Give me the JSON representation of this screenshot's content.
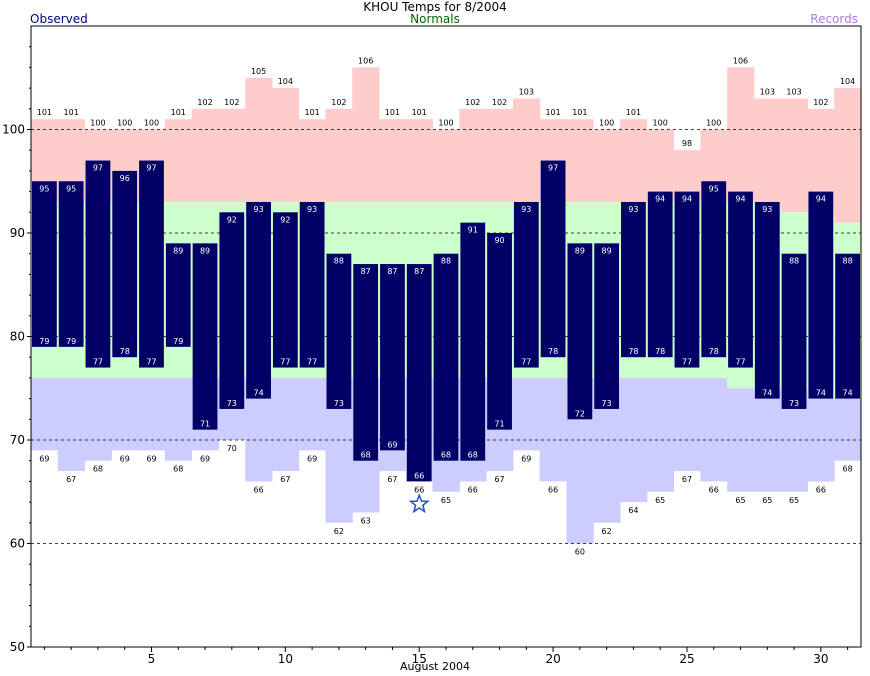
{
  "header": {
    "title": "KHOU Temps for 8/2004",
    "observed_label": "Observed",
    "normals_label": "Normals",
    "records_label": "Records"
  },
  "colors": {
    "observed": "#000066",
    "record_high": "#ffcccc",
    "normal": "#ccffcc",
    "record_low": "#ccccff",
    "title_observed": "#000080",
    "title_normals": "#006400",
    "title_records": "#b07ad8",
    "star": "#1e50c8"
  },
  "chart_data": {
    "type": "bar",
    "title": "KHOU Temps for 8/2004",
    "xlabel": "August 2004",
    "ylabel": "",
    "ylim": [
      50,
      110
    ],
    "yticks": [
      50,
      60,
      70,
      80,
      90,
      100
    ],
    "xticks": [
      5,
      10,
      15,
      20,
      25,
      30
    ],
    "grid": true,
    "legend": "top",
    "days": [
      1,
      2,
      3,
      4,
      5,
      6,
      7,
      8,
      9,
      10,
      11,
      12,
      13,
      14,
      15,
      16,
      17,
      18,
      19,
      20,
      21,
      22,
      23,
      24,
      25,
      26,
      27,
      28,
      29,
      30,
      31
    ],
    "series": [
      {
        "name": "Observed",
        "key": "obs_high",
        "values": [
          95,
          95,
          97,
          96,
          97,
          89,
          89,
          92,
          93,
          92,
          93,
          88,
          87,
          87,
          87,
          88,
          91,
          90,
          93,
          97,
          89,
          89,
          93,
          94,
          94,
          95,
          94,
          93,
          88,
          94,
          88
        ]
      },
      {
        "name": "Observed",
        "key": "obs_low",
        "values": [
          79,
          79,
          77,
          78,
          77,
          79,
          71,
          73,
          74,
          77,
          77,
          73,
          68,
          69,
          66,
          68,
          68,
          71,
          77,
          78,
          72,
          73,
          78,
          78,
          77,
          78,
          77,
          74,
          73,
          74,
          74
        ]
      },
      {
        "name": "Normals",
        "key": "normal_high",
        "values": [
          93,
          93,
          93,
          93,
          93,
          93,
          93,
          93,
          93,
          93,
          93,
          93,
          93,
          93,
          93,
          93,
          93,
          93,
          93,
          93,
          93,
          93,
          93,
          93,
          93,
          93,
          93,
          93,
          92,
          92,
          91
        ]
      },
      {
        "name": "Normals",
        "key": "normal_low",
        "values": [
          76,
          76,
          76,
          76,
          76,
          76,
          76,
          76,
          76,
          76,
          76,
          76,
          76,
          76,
          76,
          76,
          76,
          76,
          76,
          76,
          76,
          76,
          76,
          76,
          76,
          76,
          75,
          75,
          75,
          74,
          74
        ]
      },
      {
        "name": "Records",
        "key": "record_high",
        "values": [
          101,
          101,
          100,
          100,
          100,
          101,
          102,
          102,
          105,
          104,
          101,
          102,
          106,
          101,
          101,
          100,
          102,
          102,
          103,
          101,
          101,
          100,
          101,
          100,
          98,
          100,
          106,
          103,
          103,
          102,
          104
        ]
      },
      {
        "name": "Records",
        "key": "record_low",
        "values": [
          69,
          67,
          68,
          69,
          69,
          68,
          69,
          70,
          66,
          67,
          69,
          62,
          63,
          67,
          66,
          65,
          66,
          67,
          69,
          66,
          60,
          62,
          64,
          65,
          67,
          66,
          65,
          65,
          65,
          66,
          68
        ]
      }
    ],
    "annotations": [
      {
        "type": "star",
        "day": 15,
        "value": 63.8
      }
    ]
  }
}
